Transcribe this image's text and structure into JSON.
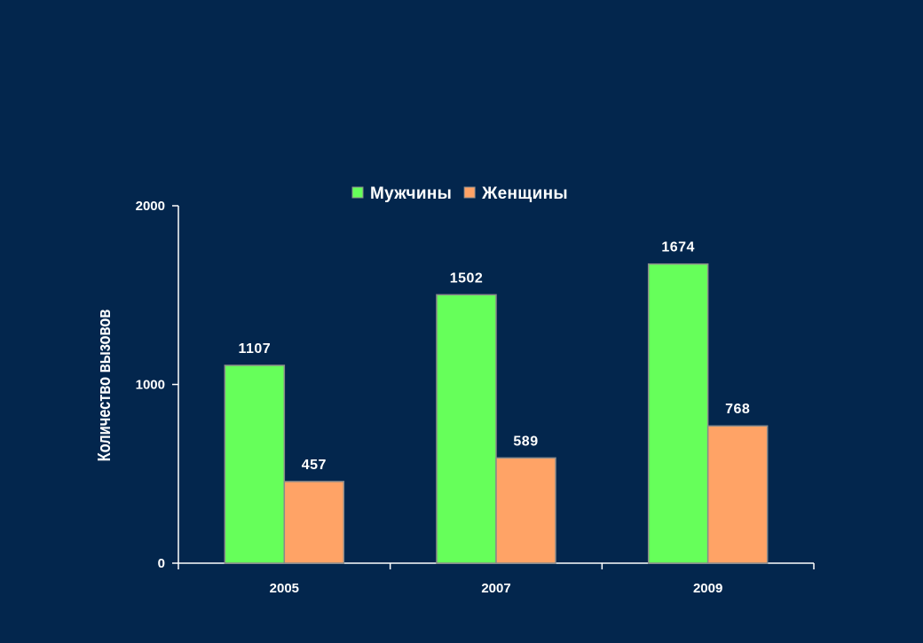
{
  "colors": {
    "background": "#03264d",
    "axis": "#ffffff",
    "men": "#66ff5a",
    "women": "#ffa366"
  },
  "chart_data": {
    "type": "bar",
    "title": "",
    "xlabel": "",
    "ylabel": "Количество вызовов",
    "categories": [
      "2005",
      "2007",
      "2009"
    ],
    "ylim": [
      0,
      2000
    ],
    "yticks": [
      0,
      1000,
      2000
    ],
    "grid": false,
    "legend_position": "top",
    "series": [
      {
        "name": "Мужчины",
        "values": [
          1107,
          1502,
          1674
        ],
        "color": "#66ff5a"
      },
      {
        "name": "Женщины",
        "values": [
          457,
          589,
          768
        ],
        "color": "#ffa366"
      }
    ],
    "data_labels": true
  }
}
